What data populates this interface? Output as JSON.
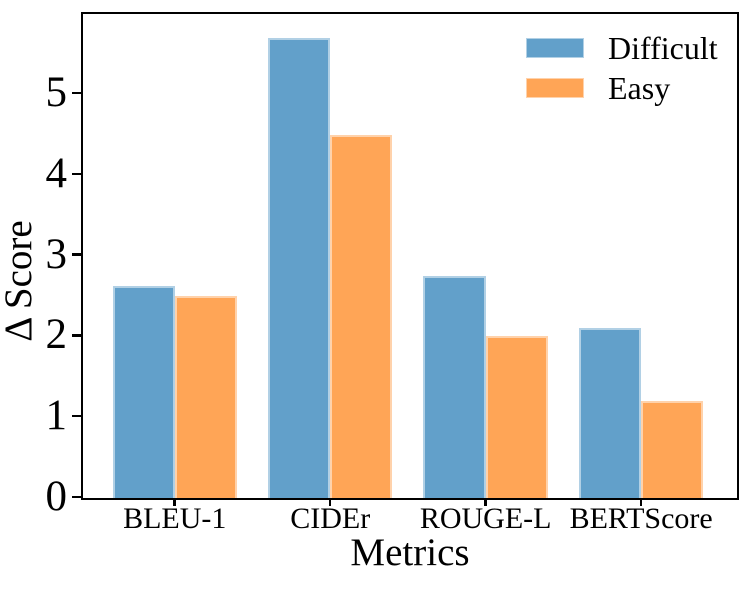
{
  "chart_data": {
    "type": "bar",
    "title": "",
    "xlabel": "Metrics",
    "ylabel": "Δ Score",
    "categories": [
      "BLEU-1",
      "CIDEr",
      "ROUGE-L",
      "BERTScore"
    ],
    "series": [
      {
        "name": "Difficult",
        "color": "#62A0CA",
        "values": [
          2.63,
          5.7,
          2.75,
          2.1
        ]
      },
      {
        "name": "Easy",
        "color": "#FFA556",
        "values": [
          2.5,
          4.5,
          2.0,
          1.2
        ]
      }
    ],
    "yticks": [
      0,
      1,
      2,
      3,
      4,
      5
    ],
    "ylim": [
      0,
      5.98
    ],
    "xlim": [
      -0.59,
      3.61
    ],
    "bar_width": 0.4,
    "grid": false,
    "legend_position": "upper right",
    "legend_frame": false,
    "axis_color": "#000000",
    "background_color": "#ffffff"
  }
}
